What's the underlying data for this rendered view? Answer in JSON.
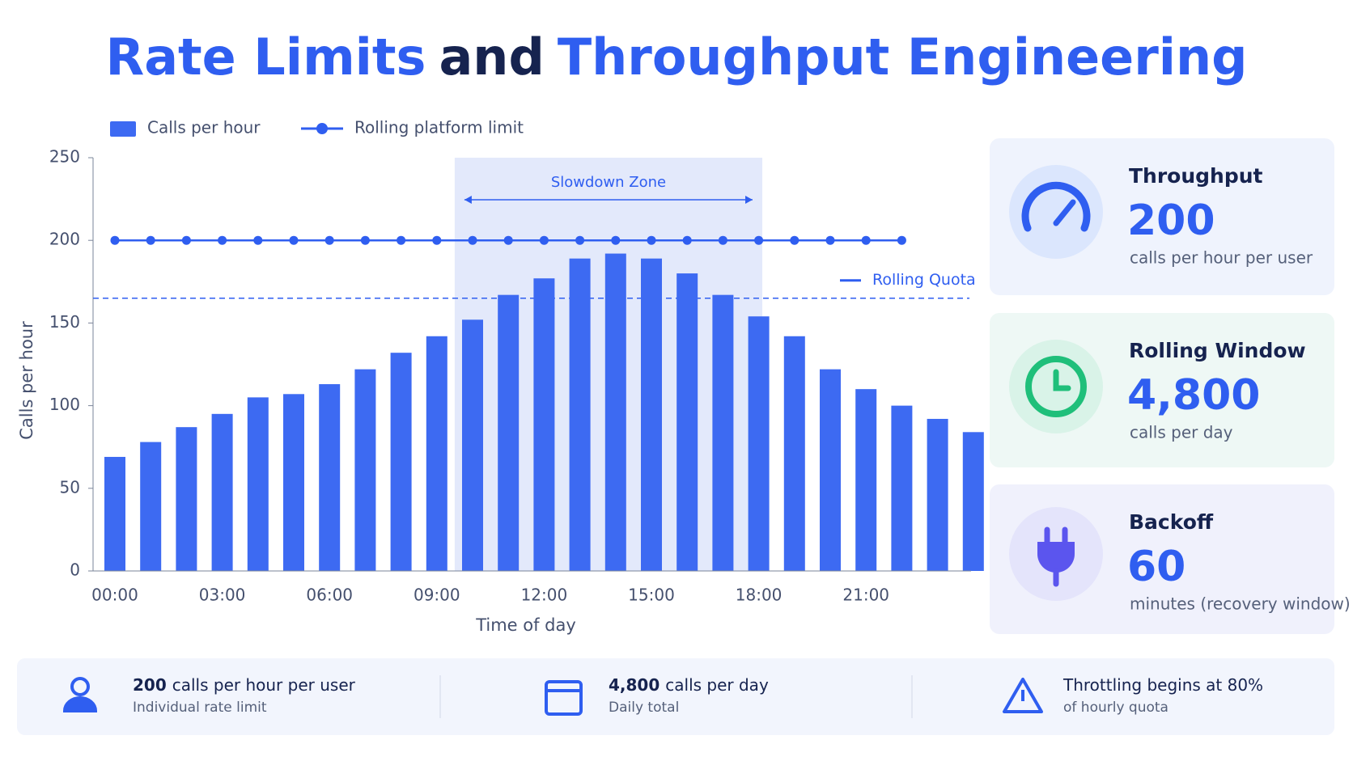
{
  "header": {
    "title_parts": [
      {
        "text": "Rate Limits",
        "color": "#2f5ef0"
      },
      {
        "text": "and",
        "color": "#16234f"
      },
      {
        "text": "Throughput Engineering",
        "color": "#2f5ef0"
      }
    ]
  },
  "chart_data": {
    "type": "bar",
    "categories": [
      "00:00",
      null,
      null,
      "03:00",
      null,
      null,
      "06:00",
      null,
      null,
      "09:00",
      null,
      null,
      "12:00",
      null,
      null,
      "15:00",
      null,
      null,
      "18:00",
      null,
      null,
      "21:00",
      null,
      null,
      null
    ],
    "series": [
      {
        "name": "Calls per hour",
        "type": "bar",
        "color": "#3d6af2",
        "values": [
          69,
          78,
          87,
          95,
          105,
          107,
          113,
          122,
          132,
          142,
          152,
          167,
          177,
          189,
          192,
          189,
          180,
          167,
          154,
          142,
          122,
          110,
          100,
          92,
          84
        ]
      },
      {
        "name": "Rolling platform limit",
        "type": "line",
        "color": "#2f5ef0",
        "values": [
          200,
          200,
          200,
          200,
          200,
          200,
          200,
          200,
          200,
          200,
          200,
          200,
          200,
          200,
          200,
          200,
          200,
          200,
          200,
          200,
          200,
          200,
          200,
          null,
          null
        ]
      }
    ],
    "reference_line": {
      "label": "Rolling Quota",
      "value": 165,
      "color": "#2f5ef0"
    },
    "zone": {
      "label": "Slowdown Zone",
      "x_range": [
        9.5,
        18.1
      ]
    },
    "xlabel": "Time of day",
    "ylabel": "Calls per hour",
    "ylim": [
      0,
      250
    ],
    "yticks": [
      0,
      50,
      100,
      150,
      200,
      250
    ]
  },
  "cards": [
    {
      "title": "Throughput",
      "value": "200",
      "caption": "calls per hour per user"
    },
    {
      "title": "Rolling Window",
      "value": "4,800",
      "caption": "calls per day"
    },
    {
      "title": "Backoff",
      "value": "60",
      "caption": "minutes (recovery window)"
    }
  ],
  "footer": [
    {
      "strong": "200",
      "text": "calls per hour per user",
      "sub": "Individual rate limit"
    },
    {
      "strong": "4,800",
      "text": "calls per day",
      "sub": "Daily total"
    },
    {
      "text": "Throttling begins at 80%",
      "sub": "of hourly quota"
    }
  ]
}
